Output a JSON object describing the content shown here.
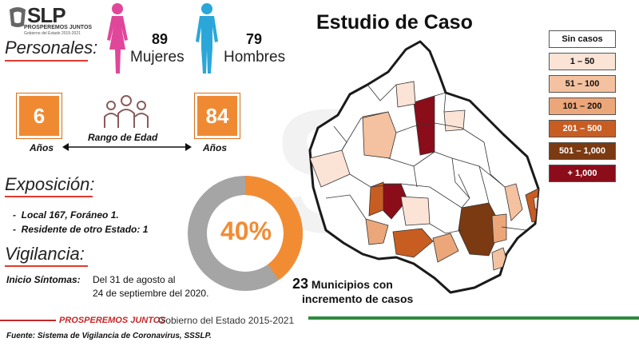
{
  "logo": {
    "title": "SLP",
    "line1": "PROSPEREMOS JUNTOS",
    "line2": "Gobierno del Estado 2015-2021"
  },
  "title": "Estudio de Caso",
  "personales": {
    "heading": "Personales:",
    "women_count": "89",
    "women_label": "Mujeres",
    "men_count": "79",
    "men_label": "Hombres"
  },
  "edad": {
    "min_value": "6",
    "min_label": "Años",
    "range_label": "Rango de Edad",
    "max_value": "84",
    "max_label": "Años"
  },
  "exposicion": {
    "heading": "Exposición:",
    "items": [
      "Local 167, Foráneo 1.",
      "Residente de otro Estado: 1"
    ]
  },
  "donut": {
    "label": "40%",
    "percent": 40,
    "colors": {
      "fill": "#f28c33",
      "rest": "#a5a5a5"
    }
  },
  "vigilancia": {
    "heading": "Vigilancia:",
    "inicio_label": "Inicio Síntomas:",
    "inicio_line1": "Del 31 de agosto al",
    "inicio_line2": "24 de septiembre del 2020."
  },
  "municipios": {
    "count": "23",
    "line1": "Municipios con",
    "line2": "incremento de casos"
  },
  "legend": [
    {
      "label": "Sin casos",
      "color": "#ffffff"
    },
    {
      "label": "1 – 50",
      "color": "#fbe3d6"
    },
    {
      "label": "51 – 100",
      "color": "#f4c2a0"
    },
    {
      "label": "101 – 200",
      "color": "#eba77a"
    },
    {
      "label": "201 – 500",
      "color": "#c85d22"
    },
    {
      "label": "501 – 1,000",
      "color": "#7b3a12"
    },
    {
      "label": "+ 1,000",
      "color": "#8b0d1a"
    }
  ],
  "footer": {
    "brand": "PROSPEREMOS JUNTOS",
    "gov": "Gobierno del Estado 2015-2021",
    "source": "Fuente: Sistema de Vigilancia de Coronavirus, SSSLP.",
    "colors": {
      "red": "#c62828",
      "green": "#2e8b3e"
    }
  }
}
